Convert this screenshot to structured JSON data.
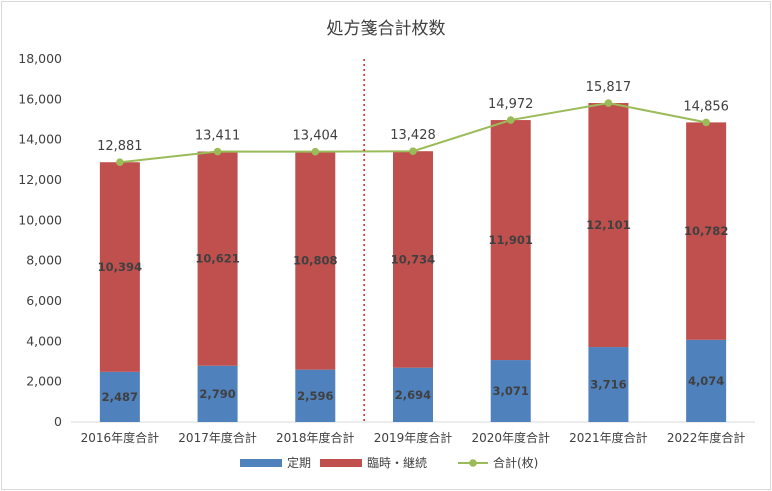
{
  "chart_data": {
    "type": "bar",
    "stacked": true,
    "title": "処方箋合計枚数",
    "xlabel": "",
    "ylabel": "",
    "categories": [
      "2016年度合計",
      "2017年度合計",
      "2018年度合計",
      "2019年度合計",
      "2020年度合計",
      "2021年度合計",
      "2022年度合計"
    ],
    "ylim": [
      0,
      18000
    ],
    "yticks": [
      "0",
      "2,000",
      "4,000",
      "6,000",
      "8,000",
      "10,000",
      "12,000",
      "14,000",
      "16,000",
      "18,000"
    ],
    "series": [
      {
        "name": "定期",
        "type": "bar",
        "color": "#4f81bd",
        "values": [
          2487,
          2790,
          2596,
          2694,
          3071,
          3716,
          4074
        ],
        "labels": [
          "2,487",
          "2,790",
          "2,596",
          "2,694",
          "3,071",
          "3,716",
          "4,074"
        ]
      },
      {
        "name": "臨時・継続",
        "type": "bar",
        "color": "#c0504d",
        "values": [
          10394,
          10621,
          10808,
          10734,
          11901,
          12101,
          10782
        ],
        "labels": [
          "10,394",
          "10,621",
          "10,808",
          "10,734",
          "11,901",
          "12,101",
          "10,782"
        ]
      },
      {
        "name": "合計(枚)",
        "type": "line",
        "color": "#9bbb59",
        "values": [
          12881,
          13411,
          13404,
          13428,
          14972,
          15817,
          14856
        ],
        "labels": [
          "12,881",
          "13,411",
          "13,404",
          "13,428",
          "14,972",
          "15,817",
          "14,856"
        ]
      }
    ],
    "annotations": [
      {
        "type": "vertical-dashed-line",
        "between": [
          "2018年度合計",
          "2019年度合計"
        ],
        "color": "#e02020"
      }
    ],
    "grid": false,
    "legend": "bottom"
  }
}
